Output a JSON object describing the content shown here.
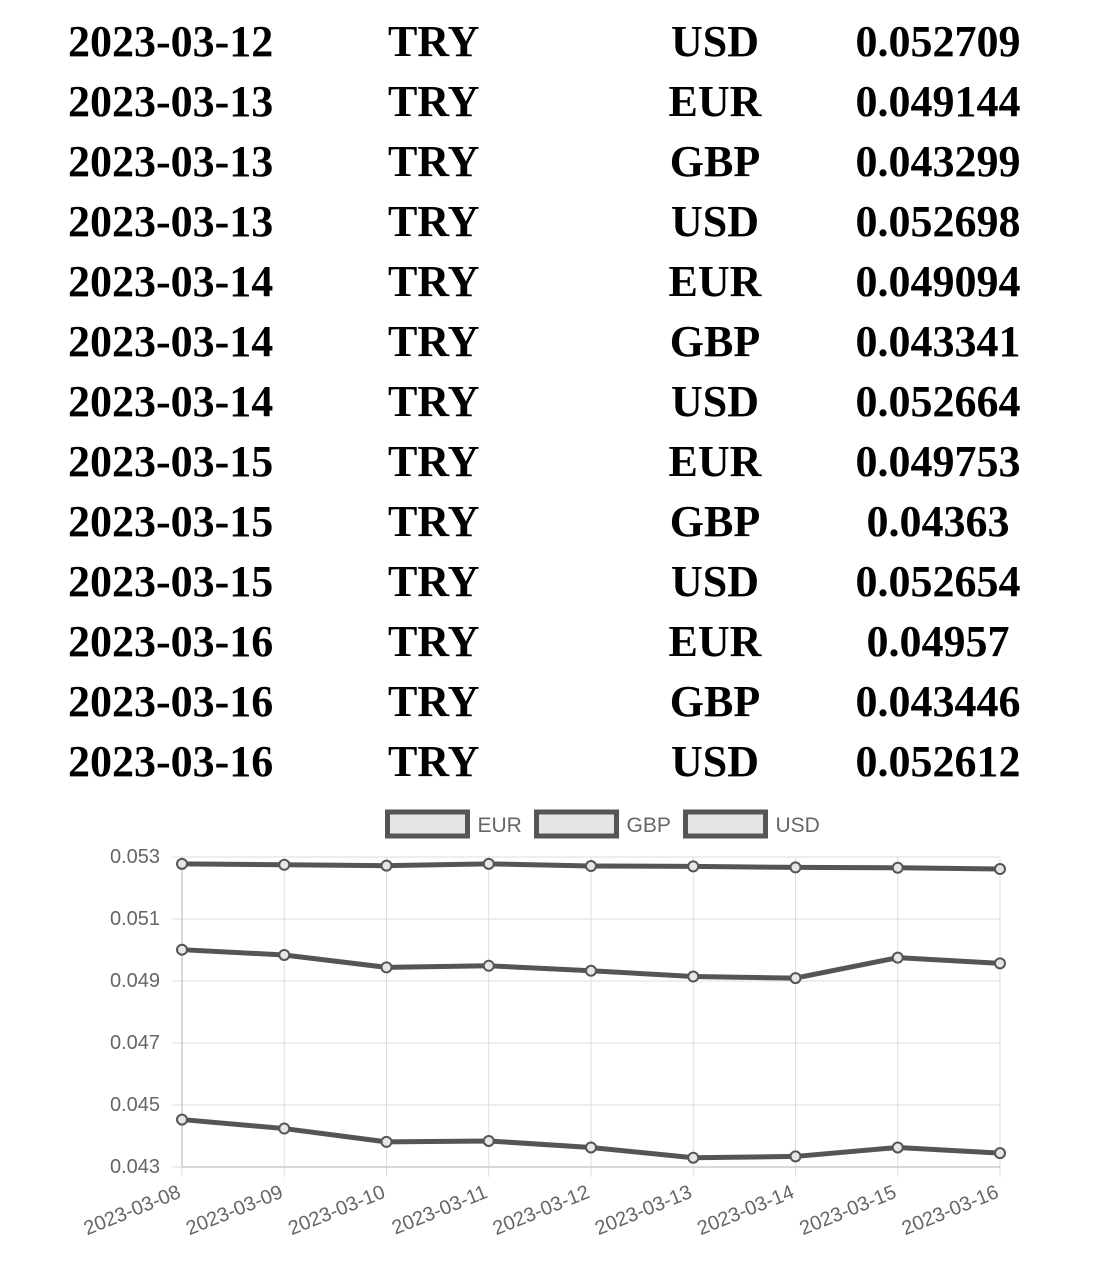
{
  "table": {
    "rows": [
      {
        "date": "2023-03-12",
        "base": "TRY",
        "quote": "USD",
        "rate": "0.052709"
      },
      {
        "date": "2023-03-13",
        "base": "TRY",
        "quote": "EUR",
        "rate": "0.049144"
      },
      {
        "date": "2023-03-13",
        "base": "TRY",
        "quote": "GBP",
        "rate": "0.043299"
      },
      {
        "date": "2023-03-13",
        "base": "TRY",
        "quote": "USD",
        "rate": "0.052698"
      },
      {
        "date": "2023-03-14",
        "base": "TRY",
        "quote": "EUR",
        "rate": "0.049094"
      },
      {
        "date": "2023-03-14",
        "base": "TRY",
        "quote": "GBP",
        "rate": "0.043341"
      },
      {
        "date": "2023-03-14",
        "base": "TRY",
        "quote": "USD",
        "rate": "0.052664"
      },
      {
        "date": "2023-03-15",
        "base": "TRY",
        "quote": "EUR",
        "rate": "0.049753"
      },
      {
        "date": "2023-03-15",
        "base": "TRY",
        "quote": "GBP",
        "rate": "0.04363"
      },
      {
        "date": "2023-03-15",
        "base": "TRY",
        "quote": "USD",
        "rate": "0.052654"
      },
      {
        "date": "2023-03-16",
        "base": "TRY",
        "quote": "EUR",
        "rate": "0.04957"
      },
      {
        "date": "2023-03-16",
        "base": "TRY",
        "quote": "GBP",
        "rate": "0.043446"
      },
      {
        "date": "2023-03-16",
        "base": "TRY",
        "quote": "USD",
        "rate": "0.052612"
      }
    ]
  },
  "chart_data": {
    "type": "line",
    "x": [
      "2023-03-08",
      "2023-03-09",
      "2023-03-10",
      "2023-03-11",
      "2023-03-12",
      "2023-03-13",
      "2023-03-14",
      "2023-03-15",
      "2023-03-16"
    ],
    "series": [
      {
        "name": "EUR",
        "values": [
          0.05001,
          0.04984,
          0.04944,
          0.04949,
          0.04933,
          0.049144,
          0.049094,
          0.049753,
          0.04957
        ]
      },
      {
        "name": "GBP",
        "values": [
          0.04453,
          0.04424,
          0.04381,
          0.04384,
          0.04363,
          0.043299,
          0.043341,
          0.04363,
          0.043446
        ]
      },
      {
        "name": "USD",
        "values": [
          0.05278,
          0.05275,
          0.05272,
          0.05278,
          0.052709,
          0.052698,
          0.052664,
          0.052654,
          0.052612
        ]
      }
    ],
    "ylim": [
      0.043,
      0.053
    ],
    "yticks": [
      "0.053",
      "0.051",
      "0.049",
      "0.047",
      "0.045",
      "0.043"
    ],
    "grid": true,
    "legend": "top",
    "colors": {
      "line": "#555555",
      "legend_fill": "#e6e6e6",
      "grid": "#dddddd",
      "tick_text": "#666666"
    }
  }
}
